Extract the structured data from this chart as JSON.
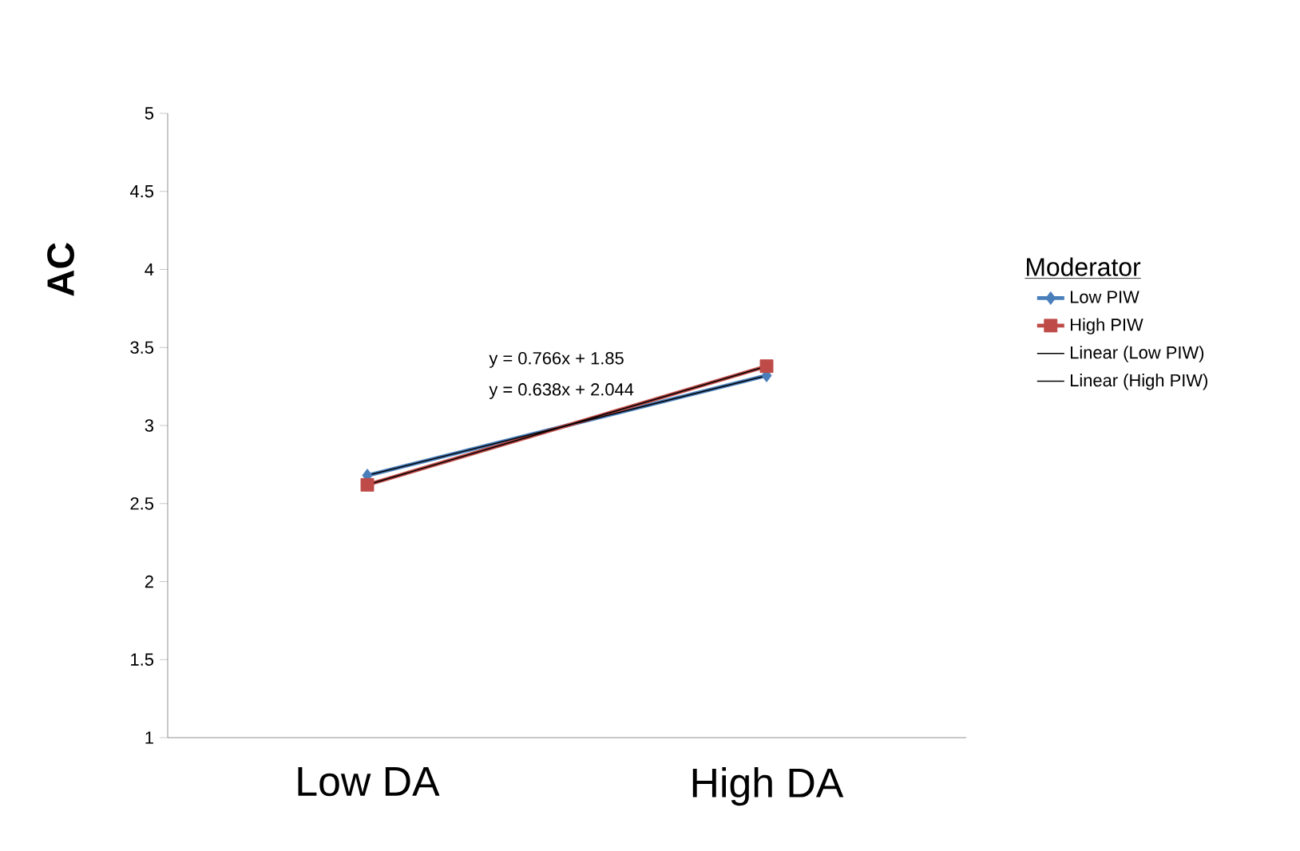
{
  "chart_data": {
    "type": "line",
    "ylabel": "AC",
    "categories": [
      "Low DA",
      "High DA"
    ],
    "series": [
      {
        "name": "Low PIW",
        "color": "#4a7ebb",
        "marker": "diamond",
        "values": [
          2.68,
          3.32
        ]
      },
      {
        "name": "High PIW",
        "color": "#be4b48",
        "marker": "square",
        "values": [
          2.62,
          3.38
        ]
      },
      {
        "name": "Linear (Low PIW)",
        "color": "#000000",
        "marker": "none",
        "values": [
          2.68,
          3.32
        ]
      },
      {
        "name": "Linear (High PIW)",
        "color": "#000000",
        "marker": "none",
        "values": [
          2.62,
          3.38
        ]
      }
    ],
    "ylim": [
      1,
      5
    ],
    "yticks": [
      1,
      1.5,
      2,
      2.5,
      3,
      3.5,
      4,
      4.5,
      5
    ],
    "legend": "right",
    "legend_title": "Moderator",
    "grid": false,
    "annotations": [
      "y = 0.766x + 1.85",
      "y = 0.638x + 2.044"
    ]
  }
}
